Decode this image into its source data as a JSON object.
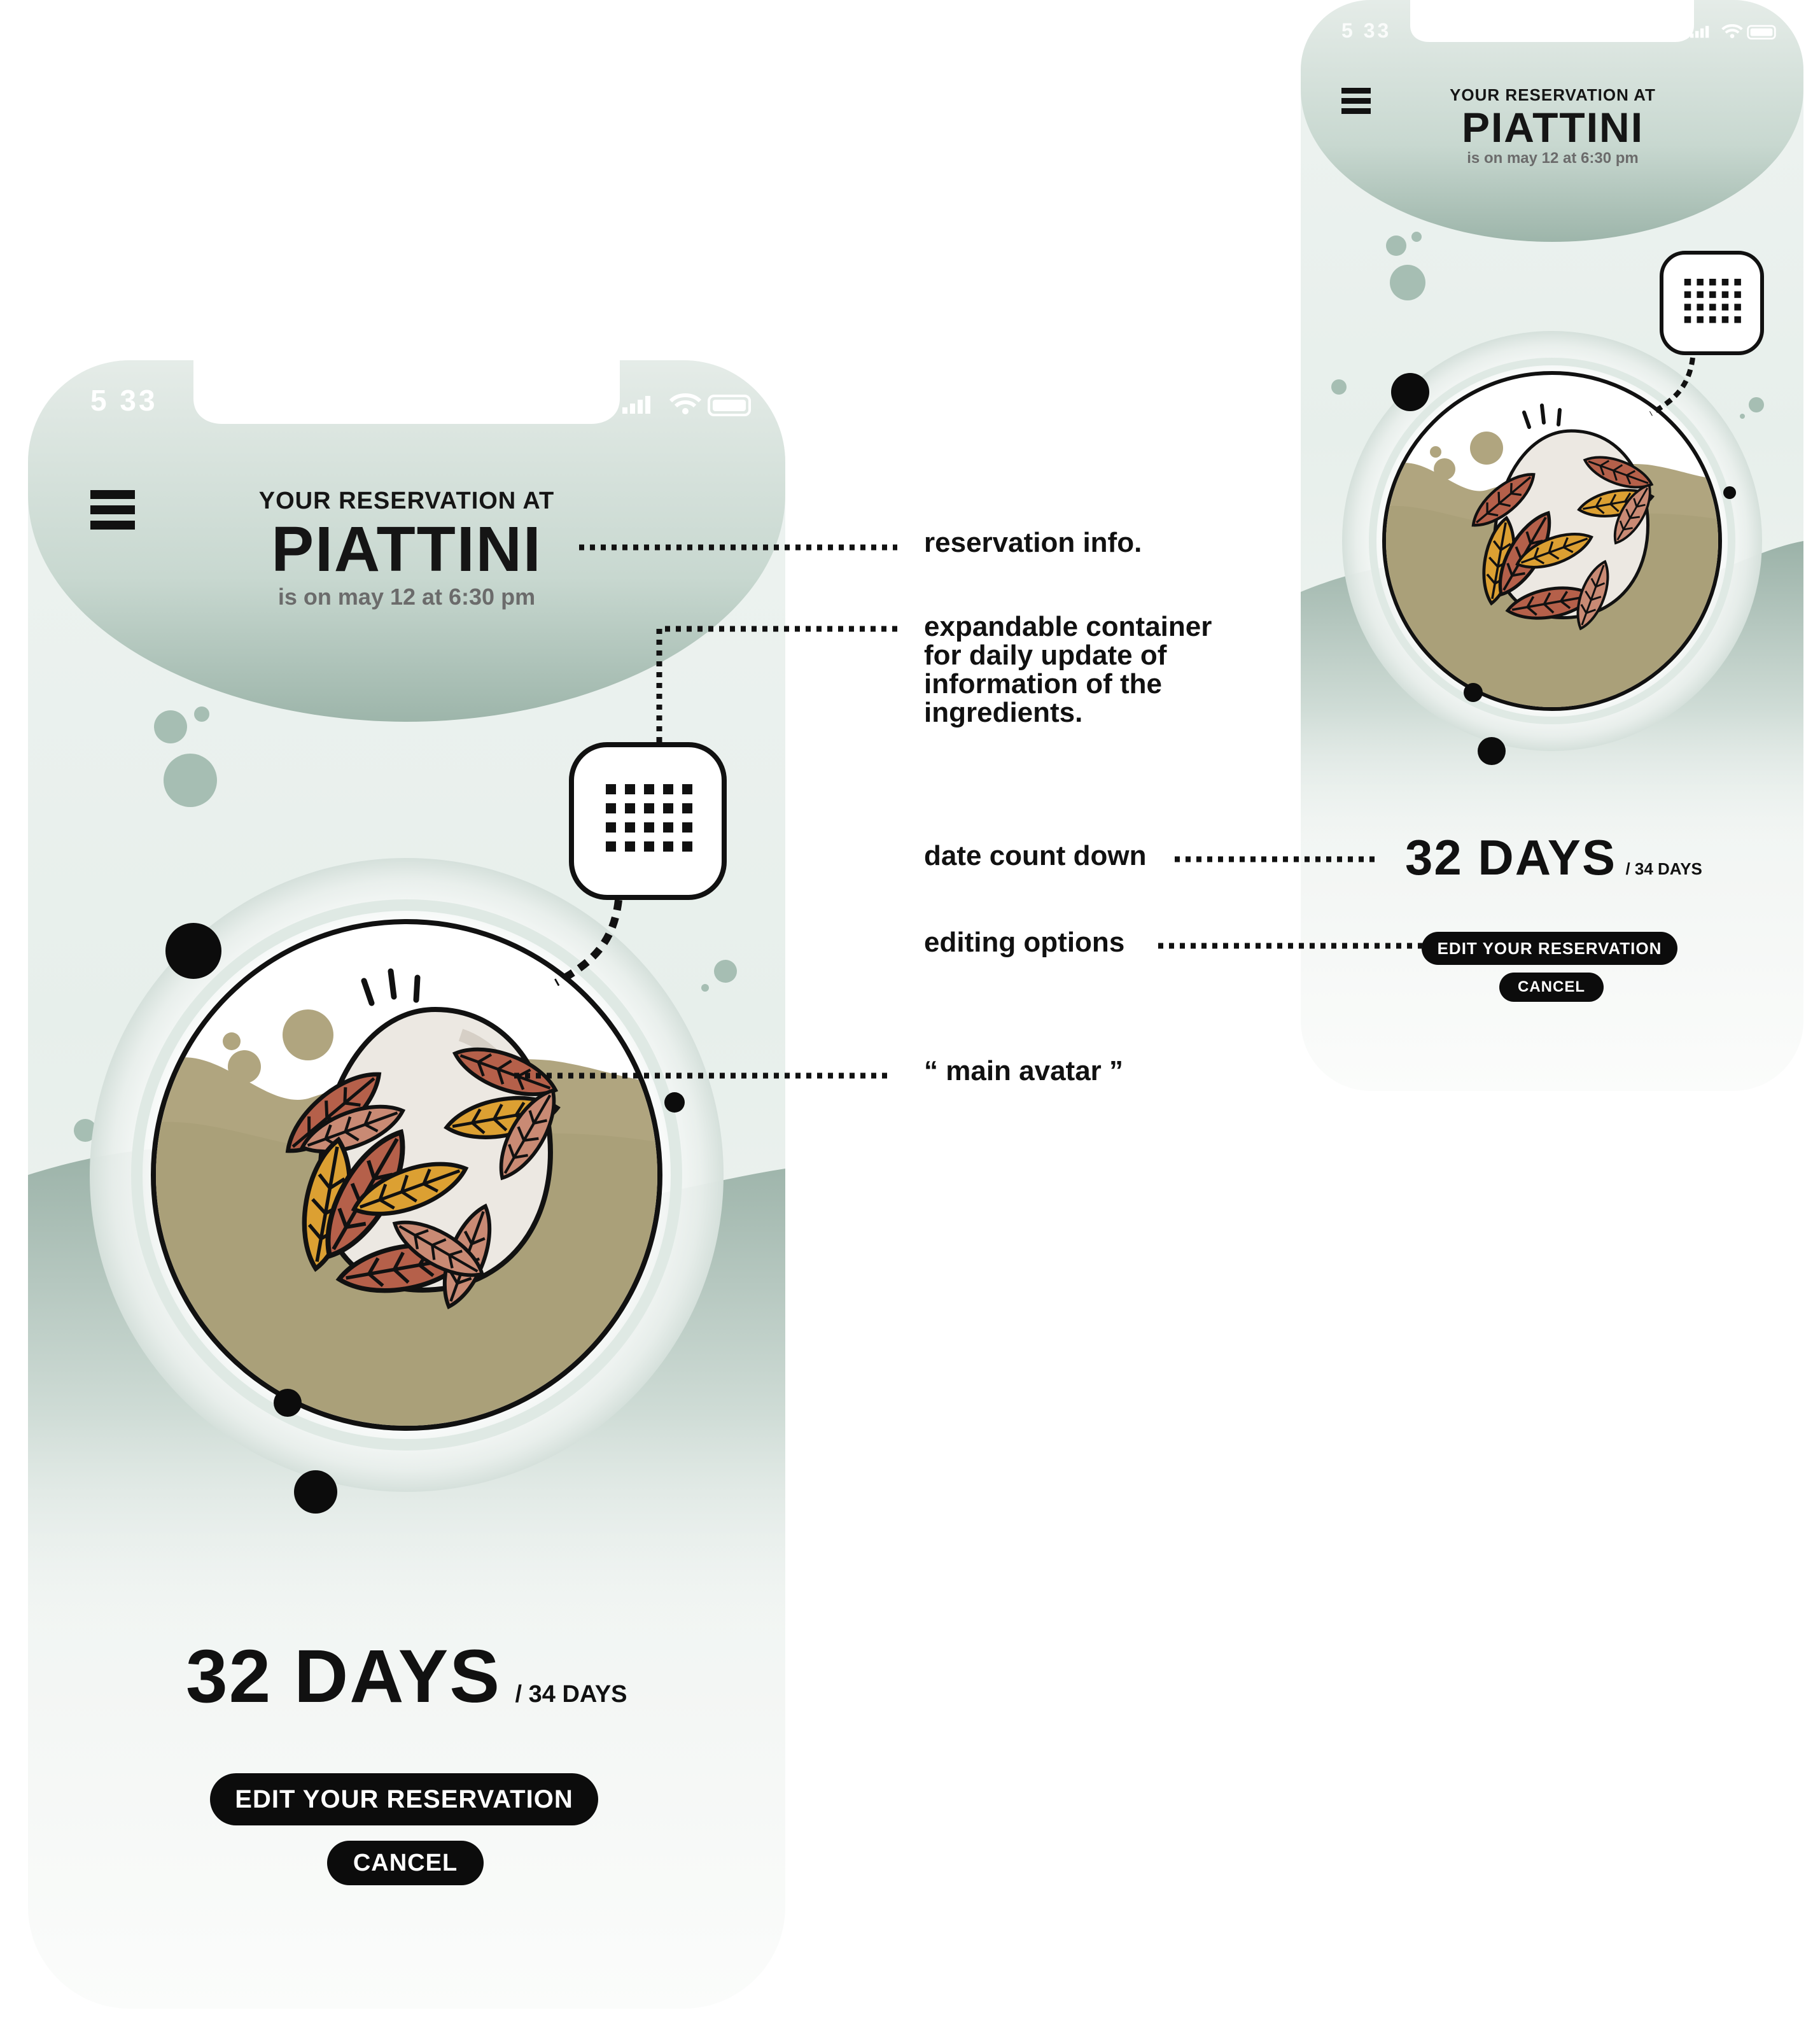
{
  "status_bar": {
    "time": "5 33"
  },
  "header": {
    "line1": "YOUR RESERVATION AT",
    "restaurant": "PIATTINI",
    "when": "is on may 12 at 6:30 pm"
  },
  "countdown": {
    "days": "32 DAYS",
    "total": "/ 34 DAYS"
  },
  "buttons": {
    "edit": "EDIT YOUR RESERVATION",
    "cancel": "CANCEL"
  },
  "icons": {
    "menu": "hamburger-menu-icon",
    "info": "grid-dots-icon",
    "avatar": "leaf-egg-avatar"
  },
  "annotations": {
    "reservation_info": "reservation info.",
    "expandable_1": "expandable container",
    "expandable_2": "for daily update of",
    "expandable_3": "information of the",
    "expandable_4": "ingredients.",
    "date_countdown": "date count down",
    "editing_options": "editing options",
    "main_avatar": "“ main avatar ”"
  },
  "colors": {
    "sage": "#a8bfb5",
    "olive": "#b0a57f",
    "rust": "#b5604a",
    "amber": "#dca032",
    "ink": "#111111"
  }
}
